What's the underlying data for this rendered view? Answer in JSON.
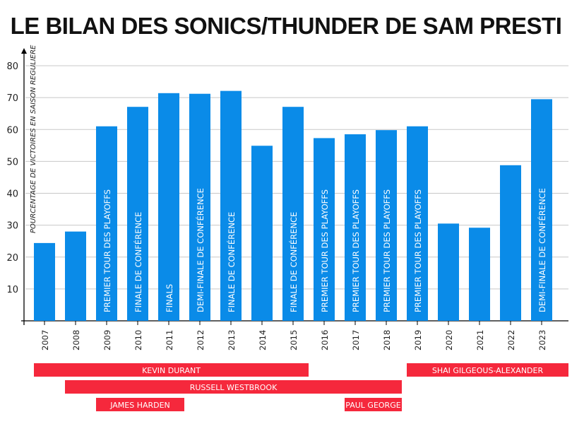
{
  "chart_data": {
    "type": "bar",
    "title": "LE BILAN DES SONICS/THUNDER DE SAM PRESTI",
    "ylabel": "POURCENTAGE DE VICTOIRES EN SAISON REGULIERE",
    "xlabel": "",
    "ylim": [
      0,
      80
    ],
    "yticks": [
      10,
      20,
      30,
      40,
      50,
      60,
      70,
      80
    ],
    "grid": true,
    "categories": [
      "2007",
      "2008",
      "2009",
      "2010",
      "2011",
      "2012",
      "2013",
      "2014",
      "2015",
      "2016",
      "2017",
      "2018",
      "2019",
      "2020",
      "2021",
      "2022",
      "2023"
    ],
    "values": [
      24.4,
      28.0,
      61.0,
      67.1,
      71.4,
      71.2,
      72.1,
      54.9,
      67.1,
      57.3,
      58.5,
      59.8,
      61.0,
      30.5,
      29.2,
      48.8,
      69.5
    ],
    "bar_labels": [
      "",
      "",
      "PREMIER TOUR DES PLAYOFFS",
      "FINALE DE CONFÉRENCE",
      "FINALS",
      "DEMI-FINALE DE CONFÉRENCE",
      "FINALE DE CONFÉRENCE",
      "",
      "FINALE DE CONFÉRENCE",
      "PREMIER TOUR DES PLAYOFFS",
      "PREMIER TOUR DES PLAYOFFS",
      "PREMIER TOUR DES PLAYOFFS",
      "PREMIER TOUR DES PLAYOFFS",
      "",
      "",
      "",
      "DEMI-FINALE DE CONFÉRENCE"
    ],
    "players": [
      {
        "name": "KEVIN DURANT",
        "from": "2007",
        "to": "2015"
      },
      {
        "name": "RUSSELL WESTBROOK",
        "from": "2008",
        "to": "2018"
      },
      {
        "name": "JAMES HARDEN",
        "from": "2009",
        "to": "2011"
      },
      {
        "name": "PAUL GEORGE",
        "from": "2017",
        "to": "2018"
      },
      {
        "name": "SHAI GILGEOUS-ALEXANDER",
        "from": "2019",
        "to": "2023"
      }
    ],
    "colors": {
      "bar": "#0a8be8",
      "player": "#f5283c",
      "grid": "#c8c8c8"
    }
  }
}
